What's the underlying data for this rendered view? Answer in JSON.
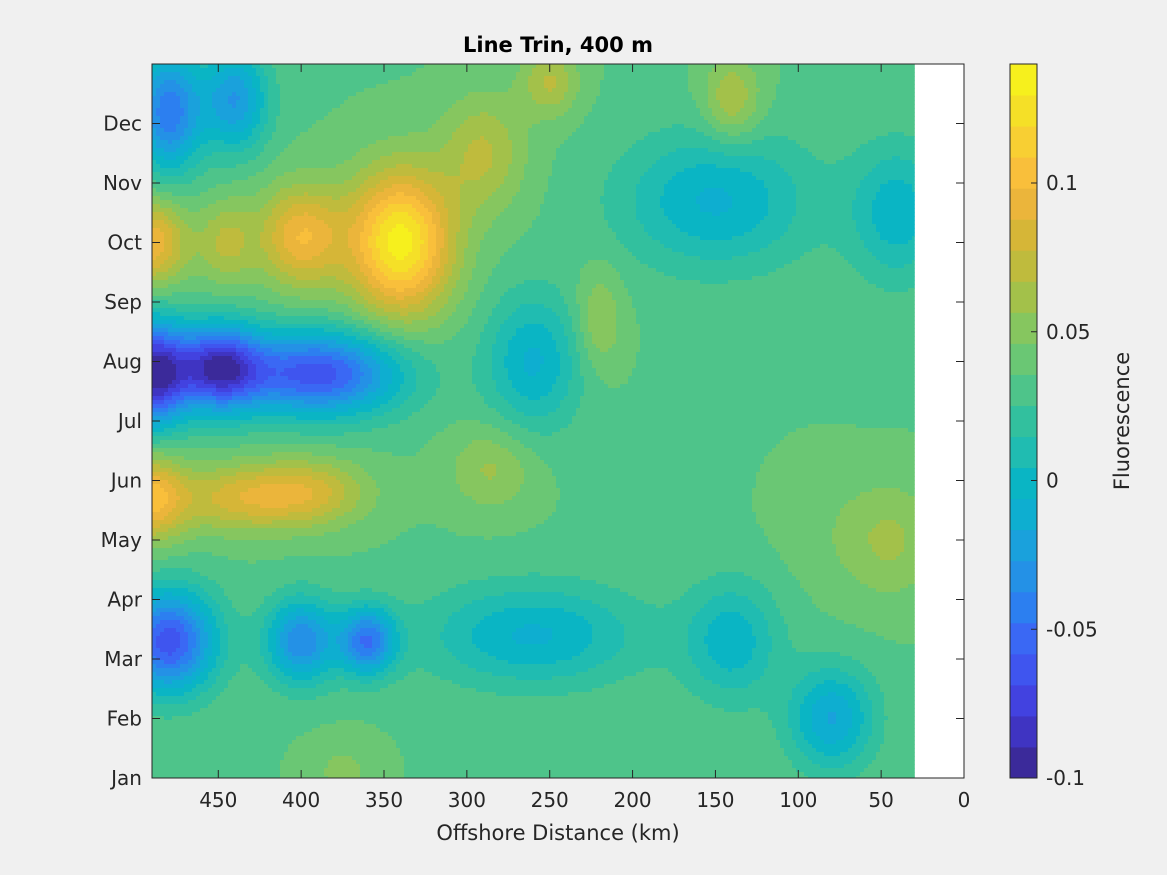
{
  "chart_data": {
    "type": "heatmap",
    "title": "Line Trin, 400 m",
    "xlabel": "Offshore Distance (km)",
    "ylabel": "",
    "colorbar_label": "Fluorescence",
    "x_reversed": true,
    "xlim": [
      490,
      0
    ],
    "x_ticks": [
      450,
      400,
      350,
      300,
      250,
      200,
      150,
      100,
      50,
      0
    ],
    "x_data_range": [
      490,
      30
    ],
    "y_categories": [
      "Jan",
      "Feb",
      "Mar",
      "Apr",
      "May",
      "Jun",
      "Jul",
      "Aug",
      "Sep",
      "Oct",
      "Nov",
      "Dec"
    ],
    "y_range": [
      1,
      13
    ],
    "clim": [
      -0.1,
      0.14
    ],
    "colorbar_ticks": [
      -0.1,
      -0.05,
      0,
      0.05,
      0.1
    ],
    "colorbar_levels": [
      "#3b2a9a",
      "#3f34c2",
      "#4242e0",
      "#3f55ef",
      "#3a68f4",
      "#2c7ff0",
      "#2491e6",
      "#1aa1dc",
      "#0eaed0",
      "#0ab5c4",
      "#20bcb1",
      "#32c09e",
      "#4ec48a",
      "#6ac774",
      "#86c65f",
      "#a3c14a",
      "#bfbb3d",
      "#d6b637",
      "#ebb53b",
      "#f9bf3b",
      "#f8cf33",
      "#f5e027",
      "#f6f01d"
    ],
    "anomalies": [
      {
        "x": 340,
        "month": 10.0,
        "value": 0.14,
        "sx": 22,
        "sm": 0.85
      },
      {
        "x": 400,
        "month": 10.1,
        "value": 0.1,
        "sx": 18,
        "sm": 0.6
      },
      {
        "x": 490,
        "month": 10.0,
        "value": 0.1,
        "sx": 15,
        "sm": 0.5
      },
      {
        "x": 445,
        "month": 10.0,
        "value": 0.07,
        "sx": 12,
        "sm": 0.5
      },
      {
        "x": 490,
        "month": 5.7,
        "value": 0.1,
        "sx": 14,
        "sm": 0.5
      },
      {
        "x": 440,
        "month": 5.7,
        "value": 0.08,
        "sx": 28,
        "sm": 0.4
      },
      {
        "x": 395,
        "month": 5.8,
        "value": 0.08,
        "sx": 25,
        "sm": 0.4
      },
      {
        "x": 285,
        "month": 6.2,
        "value": 0.06,
        "sx": 18,
        "sm": 0.5
      },
      {
        "x": 290,
        "month": 11.5,
        "value": 0.07,
        "sx": 18,
        "sm": 0.7
      },
      {
        "x": 250,
        "month": 12.7,
        "value": 0.07,
        "sx": 12,
        "sm": 0.4
      },
      {
        "x": 140,
        "month": 12.4,
        "value": 0.07,
        "sx": 12,
        "sm": 0.5
      },
      {
        "x": 220,
        "month": 8.7,
        "value": 0.06,
        "sx": 10,
        "sm": 0.6
      },
      {
        "x": 45,
        "month": 5.0,
        "value": 0.06,
        "sx": 22,
        "sm": 0.7
      },
      {
        "x": 90,
        "month": 5.3,
        "value": 0.04,
        "sx": 20,
        "sm": 0.8
      },
      {
        "x": 375,
        "month": 1.1,
        "value": 0.05,
        "sx": 15,
        "sm": 0.4
      },
      {
        "x": 490,
        "month": 7.8,
        "value": -0.1,
        "sx": 15,
        "sm": 0.6
      },
      {
        "x": 450,
        "month": 7.9,
        "value": -0.08,
        "sx": 18,
        "sm": 0.5
      },
      {
        "x": 390,
        "month": 7.8,
        "value": -0.07,
        "sx": 35,
        "sm": 0.5
      },
      {
        "x": 480,
        "month": 3.3,
        "value": -0.07,
        "sx": 20,
        "sm": 0.6
      },
      {
        "x": 400,
        "month": 3.3,
        "value": -0.04,
        "sx": 15,
        "sm": 0.5
      },
      {
        "x": 360,
        "month": 3.3,
        "value": -0.05,
        "sx": 12,
        "sm": 0.4
      },
      {
        "x": 480,
        "month": 12.2,
        "value": -0.05,
        "sx": 14,
        "sm": 0.7
      },
      {
        "x": 440,
        "month": 12.4,
        "value": -0.03,
        "sx": 14,
        "sm": 0.6
      },
      {
        "x": 260,
        "month": 8.0,
        "value": -0.01,
        "sx": 20,
        "sm": 0.8
      },
      {
        "x": 150,
        "month": 10.7,
        "value": -0.01,
        "sx": 40,
        "sm": 0.8
      },
      {
        "x": 80,
        "month": 2.0,
        "value": -0.02,
        "sx": 18,
        "sm": 0.6
      },
      {
        "x": 260,
        "month": 3.4,
        "value": -0.01,
        "sx": 45,
        "sm": 0.6
      },
      {
        "x": 140,
        "month": 3.3,
        "value": -0.005,
        "sx": 20,
        "sm": 0.7
      },
      {
        "x": 40,
        "month": 10.5,
        "value": -0.005,
        "sx": 20,
        "sm": 0.8
      }
    ],
    "base_value": 0.035
  }
}
